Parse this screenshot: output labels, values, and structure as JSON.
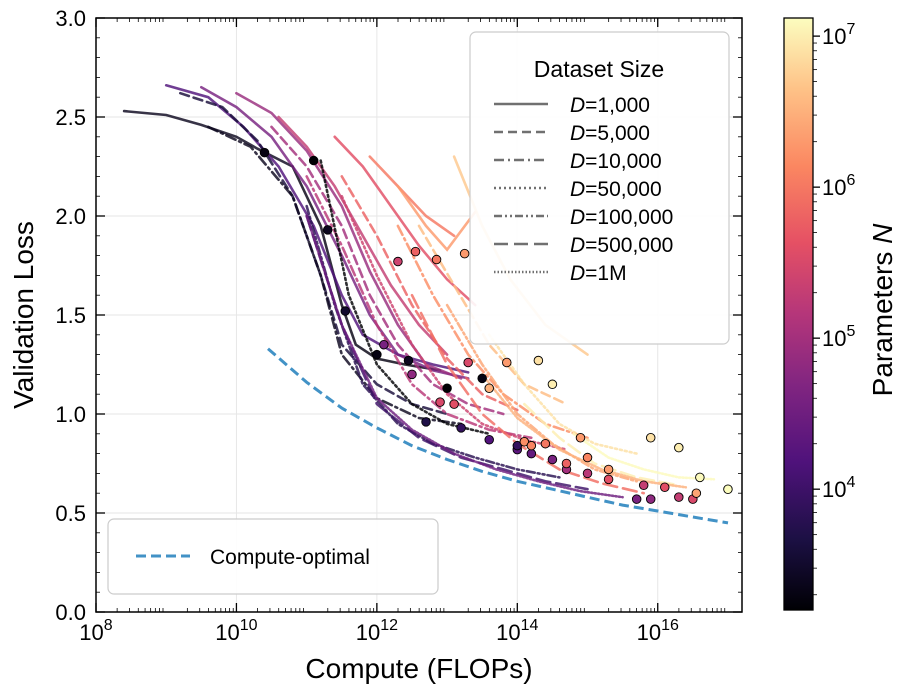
{
  "chart_data": {
    "type": "line",
    "xlabel": "Compute (FLOPs)",
    "ylabel": "Validation Loss",
    "x_scale": "log",
    "xlim_log10": [
      8,
      17.2
    ],
    "ylim": [
      0.0,
      3.0
    ],
    "x_ticks_log10": [
      8,
      10,
      12,
      14,
      16
    ],
    "x_tick_labels": [
      {
        "base": "10",
        "exp": "8"
      },
      {
        "base": "10",
        "exp": "10"
      },
      {
        "base": "10",
        "exp": "12"
      },
      {
        "base": "10",
        "exp": "14"
      },
      {
        "base": "10",
        "exp": "16"
      }
    ],
    "y_ticks": [
      0.0,
      0.5,
      1.0,
      1.5,
      2.0,
      2.5,
      3.0
    ],
    "y_tick_labels": [
      "0.0",
      "0.5",
      "1.0",
      "1.5",
      "2.0",
      "2.5",
      "3.0"
    ],
    "grid": true,
    "legend": {
      "title": "Dataset Size",
      "placement": "upper-right",
      "entries": [
        {
          "var": "D",
          "text": "=1,000",
          "dash": "solid"
        },
        {
          "var": "D",
          "text": "=5,000",
          "dash": "dashed"
        },
        {
          "var": "D",
          "text": "=10,000",
          "dash": "dashdot"
        },
        {
          "var": "D",
          "text": "=50,000",
          "dash": "dotted"
        },
        {
          "var": "D",
          "text": "=100,000",
          "dash": "dashdotdot"
        },
        {
          "var": "D",
          "text": "=500,000",
          "dash": "longdash"
        },
        {
          "var": "D",
          "text": "=1M",
          "dash": "densedot"
        }
      ]
    },
    "optimal_legend": {
      "label": "Compute-optimal",
      "placement": "lower-left",
      "color": "#4292c6"
    },
    "colorbar": {
      "label": "Parameters",
      "label_var": "N",
      "scale": "log",
      "range_log10": [
        3.2,
        7.12
      ],
      "ticks": [
        {
          "base": "10",
          "exp": "4",
          "log10": 4
        },
        {
          "base": "10",
          "exp": "5",
          "log10": 5
        },
        {
          "base": "10",
          "exp": "6",
          "log10": 6
        },
        {
          "base": "10",
          "exp": "7",
          "log10": 7
        }
      ],
      "colormap": "magma"
    },
    "series": [
      {
        "name": "D=1,000",
        "dash": "solid",
        "params_log10": 3.4,
        "x": [
          8.4,
          9.0,
          9.5,
          10.0,
          10.3,
          10.8
        ],
        "y": [
          2.53,
          2.51,
          2.46,
          2.4,
          2.34,
          2.25
        ]
      },
      {
        "name": "D=1,000",
        "dash": "solid",
        "params_log10": 3.3,
        "x": [
          10.8,
          11.2,
          11.5,
          11.7,
          12.0,
          12.4,
          12.9
        ],
        "y": [
          2.25,
          1.95,
          1.55,
          1.35,
          1.28,
          1.25,
          1.22
        ]
      },
      {
        "name": "D=1,000",
        "dash": "solid",
        "params_log10": 4.2,
        "x": [
          9.0,
          9.6,
          10.1,
          10.6,
          11.1,
          11.5,
          11.8,
          12.3,
          12.8,
          13.3
        ],
        "y": [
          2.66,
          2.6,
          2.45,
          2.25,
          1.95,
          1.6,
          1.4,
          1.3,
          1.25,
          1.21
        ]
      },
      {
        "name": "D=1,000",
        "dash": "solid",
        "params_log10": 4.6,
        "x": [
          9.5,
          10.0,
          10.5,
          11.0,
          11.5,
          11.9,
          12.3,
          12.8,
          13.3
        ],
        "y": [
          2.65,
          2.55,
          2.4,
          2.15,
          1.8,
          1.5,
          1.3,
          1.22,
          1.18
        ]
      },
      {
        "name": "D=1,000",
        "dash": "solid",
        "params_log10": 4.9,
        "x": [
          10.0,
          10.5,
          11.0,
          11.5,
          11.9,
          12.3,
          12.7,
          13.2
        ],
        "y": [
          2.62,
          2.52,
          2.33,
          2.05,
          1.72,
          1.45,
          1.25,
          1.18
        ]
      },
      {
        "name": "D=1,000",
        "dash": "solid",
        "params_log10": 5.3,
        "x": [
          10.6,
          11.0,
          11.4,
          11.8,
          12.2,
          12.6,
          13.0
        ],
        "y": [
          2.5,
          2.35,
          2.15,
          1.9,
          1.65,
          1.45,
          1.3
        ]
      },
      {
        "name": "D=1,000",
        "dash": "solid",
        "params_log10": 5.6,
        "x": [
          11.4,
          11.8,
          12.2,
          12.6,
          13.0,
          13.4
        ],
        "y": [
          2.4,
          2.25,
          2.05,
          1.85,
          1.68,
          1.55
        ]
      },
      {
        "name": "D=1,000",
        "dash": "solid",
        "params_log10": 6.0,
        "x": [
          11.9,
          12.3,
          12.7,
          13.1
        ],
        "y": [
          2.3,
          2.15,
          2.0,
          1.9
        ]
      },
      {
        "name": "D=1,000",
        "dash": "solid",
        "params_log10": 6.3,
        "x": [
          12.3,
          12.7,
          13.0,
          13.4
        ],
        "y": [
          2.15,
          1.95,
          1.83,
          2.02
        ]
      },
      {
        "name": "D=1,000",
        "dash": "solid",
        "params_log10": 6.7,
        "x": [
          13.1,
          13.5,
          13.9,
          14.4,
          15.0
        ],
        "y": [
          2.3,
          1.95,
          1.68,
          1.45,
          1.3
        ]
      },
      {
        "name": "D=5,000",
        "dash": "dashed",
        "params_log10": 3.6,
        "x": [
          9.2,
          9.8,
          10.3,
          10.8,
          11.2,
          11.5,
          12.0,
          12.5,
          13.0
        ],
        "y": [
          2.62,
          2.55,
          2.38,
          2.1,
          1.7,
          1.35,
          1.15,
          1.05,
          1.0
        ]
      },
      {
        "name": "D=5,000",
        "dash": "dashed",
        "params_log10": 5.0,
        "x": [
          10.5,
          11.0,
          11.5,
          11.9,
          12.3,
          12.8,
          13.3,
          13.8
        ],
        "y": [
          2.45,
          2.25,
          1.95,
          1.6,
          1.35,
          1.15,
          1.05,
          1.0
        ]
      },
      {
        "name": "D=5,000",
        "dash": "dashed",
        "params_log10": 5.8,
        "x": [
          11.5,
          12.0,
          12.5,
          13.0,
          13.5,
          14.0
        ],
        "y": [
          2.2,
          1.9,
          1.55,
          1.28,
          1.1,
          1.02
        ]
      },
      {
        "name": "D=5,000",
        "dash": "dashed",
        "params_log10": 6.6,
        "x": [
          12.6,
          13.1,
          13.6,
          14.1,
          14.7
        ],
        "y": [
          1.95,
          1.65,
          1.35,
          1.15,
          1.05
        ]
      },
      {
        "name": "D=10,000",
        "dash": "dashdot",
        "params_log10": 3.4,
        "x": [
          9.6,
          10.2,
          10.8,
          11.2,
          11.5,
          12.0,
          12.6,
          13.2
        ],
        "y": [
          2.45,
          2.35,
          2.1,
          1.7,
          1.3,
          1.08,
          0.98,
          0.95
        ]
      },
      {
        "name": "D=10,000",
        "dash": "dashdot",
        "params_log10": 5.2,
        "x": [
          11.0,
          11.5,
          12.0,
          12.5,
          13.0,
          13.6,
          14.2
        ],
        "y": [
          2.2,
          1.85,
          1.45,
          1.15,
          1.0,
          0.92,
          0.88
        ]
      },
      {
        "name": "D=10,000",
        "dash": "dashdot",
        "params_log10": 6.2,
        "x": [
          12.3,
          12.8,
          13.3,
          13.8,
          14.4,
          15.0
        ],
        "y": [
          1.95,
          1.6,
          1.3,
          1.1,
          0.95,
          0.88
        ]
      },
      {
        "name": "D=50,000",
        "dash": "dotted",
        "params_log10": 3.2,
        "x": [
          11.2,
          11.6,
          12.0,
          12.5,
          13.0,
          13.6
        ],
        "y": [
          2.28,
          1.6,
          1.25,
          1.05,
          0.95,
          0.9
        ]
      },
      {
        "name": "D=50,000",
        "dash": "dotted",
        "params_log10": 5.4,
        "x": [
          11.5,
          12.0,
          12.5,
          13.0,
          13.5,
          14.1,
          14.7
        ],
        "y": [
          2.1,
          1.7,
          1.35,
          1.1,
          0.95,
          0.87,
          0.82
        ]
      },
      {
        "name": "D=50,000",
        "dash": "dotted",
        "params_log10": 6.9,
        "x": [
          13.6,
          14.1,
          14.6,
          15.1,
          15.7
        ],
        "y": [
          1.4,
          1.15,
          0.95,
          0.85,
          0.8
        ]
      },
      {
        "name": "D=100,000",
        "dash": "dashdotdot",
        "params_log10": 3.8,
        "x": [
          11.0,
          11.4,
          11.8,
          12.3,
          12.8,
          13.4,
          14.0,
          14.6
        ],
        "y": [
          2.05,
          1.55,
          1.15,
          0.95,
          0.85,
          0.78,
          0.72,
          0.68
        ]
      },
      {
        "name": "D=100,000",
        "dash": "dashdotdot",
        "params_log10": 6.4,
        "x": [
          13.0,
          13.5,
          14.0,
          14.5,
          15.1,
          15.7
        ],
        "y": [
          1.55,
          1.25,
          1.0,
          0.85,
          0.72,
          0.66
        ]
      },
      {
        "name": "D=500,000",
        "dash": "longdash",
        "params_log10": 4.0,
        "x": [
          11.0,
          11.5,
          12.0,
          12.6,
          13.2,
          13.8,
          14.4,
          15.0
        ],
        "y": [
          2.0,
          1.45,
          1.05,
          0.88,
          0.78,
          0.72,
          0.66,
          0.62
        ]
      },
      {
        "name": "D=500,000",
        "dash": "longdash",
        "params_log10": 5.9,
        "x": [
          12.5,
          13.0,
          13.5,
          14.0,
          14.6,
          15.2,
          15.8
        ],
        "y": [
          1.6,
          1.25,
          1.0,
          0.85,
          0.72,
          0.65,
          0.6
        ]
      },
      {
        "name": "D=500,000",
        "dash": "longdash",
        "params_log10": 7.0,
        "x": [
          14.1,
          14.6,
          15.1,
          15.7,
          16.3
        ],
        "y": [
          1.05,
          0.88,
          0.75,
          0.68,
          0.64
        ]
      },
      {
        "name": "D=1M",
        "dash": "densedot",
        "params_log10": 4.5,
        "x": [
          11.0,
          11.5,
          12.0,
          12.5,
          13.1,
          13.7,
          14.3,
          14.9,
          15.5
        ],
        "y": [
          2.0,
          1.45,
          1.08,
          0.92,
          0.8,
          0.72,
          0.66,
          0.61,
          0.58
        ]
      },
      {
        "name": "D=1M",
        "dash": "densedot",
        "params_log10": 6.5,
        "x": [
          13.5,
          14.0,
          14.6,
          15.2,
          15.8,
          16.4
        ],
        "y": [
          1.2,
          0.98,
          0.82,
          0.72,
          0.66,
          0.63
        ]
      },
      {
        "name": "D=1M",
        "dash": "densedot",
        "params_log10": 7.1,
        "x": [
          14.8,
          15.3,
          15.8,
          16.3,
          16.8
        ],
        "y": [
          0.9,
          0.78,
          0.72,
          0.68,
          0.67
        ]
      }
    ],
    "optimal_points": [
      {
        "x": 10.4,
        "y": 2.32,
        "c": 3.3
      },
      {
        "x": 11.1,
        "y": 2.28,
        "c": 3.2
      },
      {
        "x": 11.3,
        "y": 1.93,
        "c": 3.4
      },
      {
        "x": 11.55,
        "y": 1.52,
        "c": 3.5
      },
      {
        "x": 12.0,
        "y": 1.3,
        "c": 3.3
      },
      {
        "x": 12.45,
        "y": 1.27,
        "c": 3.4
      },
      {
        "x": 13.0,
        "y": 1.13,
        "c": 3.2
      },
      {
        "x": 13.5,
        "y": 1.18,
        "c": 3.3
      },
      {
        "x": 12.3,
        "y": 1.77,
        "c": 5.4
      },
      {
        "x": 12.55,
        "y": 1.82,
        "c": 5.8
      },
      {
        "x": 12.85,
        "y": 1.78,
        "c": 6.0
      },
      {
        "x": 13.25,
        "y": 1.81,
        "c": 6.3
      },
      {
        "x": 12.1,
        "y": 1.35,
        "c": 4.6
      },
      {
        "x": 12.5,
        "y": 1.2,
        "c": 4.8
      },
      {
        "x": 12.9,
        "y": 1.06,
        "c": 5.5
      },
      {
        "x": 13.1,
        "y": 1.05,
        "c": 5.6
      },
      {
        "x": 13.3,
        "y": 1.26,
        "c": 5.5
      },
      {
        "x": 13.85,
        "y": 1.26,
        "c": 6.3
      },
      {
        "x": 13.6,
        "y": 1.13,
        "c": 6.5
      },
      {
        "x": 14.3,
        "y": 1.27,
        "c": 6.9
      },
      {
        "x": 14.5,
        "y": 1.15,
        "c": 7.0
      },
      {
        "x": 12.7,
        "y": 0.96,
        "c": 3.7
      },
      {
        "x": 13.2,
        "y": 0.93,
        "c": 3.9
      },
      {
        "x": 13.6,
        "y": 0.87,
        "c": 4.2
      },
      {
        "x": 14.0,
        "y": 0.82,
        "c": 4.3
      },
      {
        "x": 14.2,
        "y": 0.8,
        "c": 4.4
      },
      {
        "x": 14.5,
        "y": 0.77,
        "c": 4.6
      },
      {
        "x": 14.7,
        "y": 0.72,
        "c": 5.0
      },
      {
        "x": 14.0,
        "y": 0.84,
        "c": 3.9
      },
      {
        "x": 15.0,
        "y": 0.7,
        "c": 5.2
      },
      {
        "x": 15.3,
        "y": 0.67,
        "c": 5.6
      },
      {
        "x": 14.1,
        "y": 0.86,
        "c": 6.2
      },
      {
        "x": 14.2,
        "y": 0.84,
        "c": 6.1
      },
      {
        "x": 14.4,
        "y": 0.85,
        "c": 6.0
      },
      {
        "x": 14.9,
        "y": 0.88,
        "c": 6.3
      },
      {
        "x": 15.0,
        "y": 0.78,
        "c": 6.1
      },
      {
        "x": 14.7,
        "y": 0.75,
        "c": 5.8
      },
      {
        "x": 15.3,
        "y": 0.72,
        "c": 6.3
      },
      {
        "x": 15.9,
        "y": 0.88,
        "c": 6.9
      },
      {
        "x": 16.3,
        "y": 0.83,
        "c": 7.0
      },
      {
        "x": 16.6,
        "y": 0.68,
        "c": 7.1
      },
      {
        "x": 17.0,
        "y": 0.62,
        "c": 7.12
      },
      {
        "x": 15.8,
        "y": 0.64,
        "c": 5.3
      },
      {
        "x": 16.1,
        "y": 0.63,
        "c": 5.6
      },
      {
        "x": 16.3,
        "y": 0.58,
        "c": 5.3
      },
      {
        "x": 16.5,
        "y": 0.57,
        "c": 5.5
      },
      {
        "x": 16.55,
        "y": 0.6,
        "c": 6.4
      },
      {
        "x": 15.7,
        "y": 0.57,
        "c": 4.6
      },
      {
        "x": 15.9,
        "y": 0.57,
        "c": 4.8
      }
    ],
    "compute_optimal": {
      "x": [
        10.45,
        11.0,
        11.5,
        12.0,
        12.5,
        13.0,
        13.5,
        14.0,
        14.5,
        15.0,
        15.5,
        16.0,
        16.5,
        17.0
      ],
      "y": [
        1.33,
        1.16,
        1.03,
        0.93,
        0.84,
        0.77,
        0.71,
        0.66,
        0.62,
        0.58,
        0.54,
        0.51,
        0.48,
        0.45
      ]
    }
  }
}
